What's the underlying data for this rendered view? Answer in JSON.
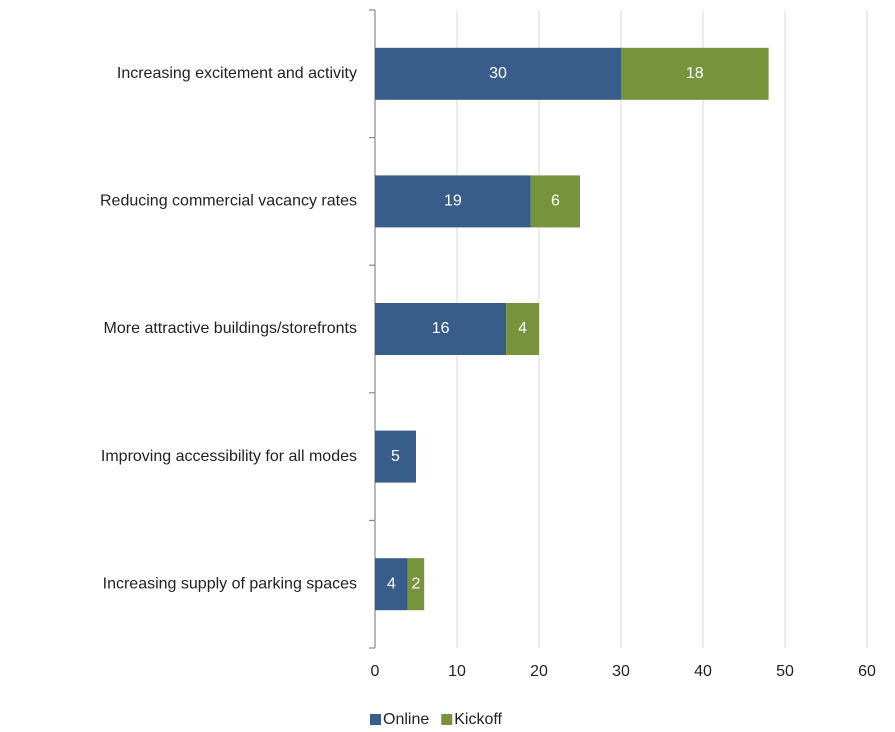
{
  "chart_data": {
    "type": "stacked_barh",
    "categories": [
      "Increasing excitement and activity",
      "Reducing commercial vacancy rates",
      "More attractive buildings/storefronts",
      "Improving accessibility for all modes",
      "Increasing supply of parking spaces"
    ],
    "series": [
      {
        "name": "Online",
        "color": "#385d8a",
        "values": [
          30,
          19,
          16,
          5,
          4
        ]
      },
      {
        "name": "Kickoff",
        "color": "#77933c",
        "values": [
          18,
          6,
          4,
          null,
          2
        ]
      }
    ],
    "xlim": [
      0,
      60
    ],
    "xticks": [
      0,
      10,
      20,
      30,
      40,
      50,
      60
    ],
    "grid": true,
    "legend": "bottom"
  }
}
